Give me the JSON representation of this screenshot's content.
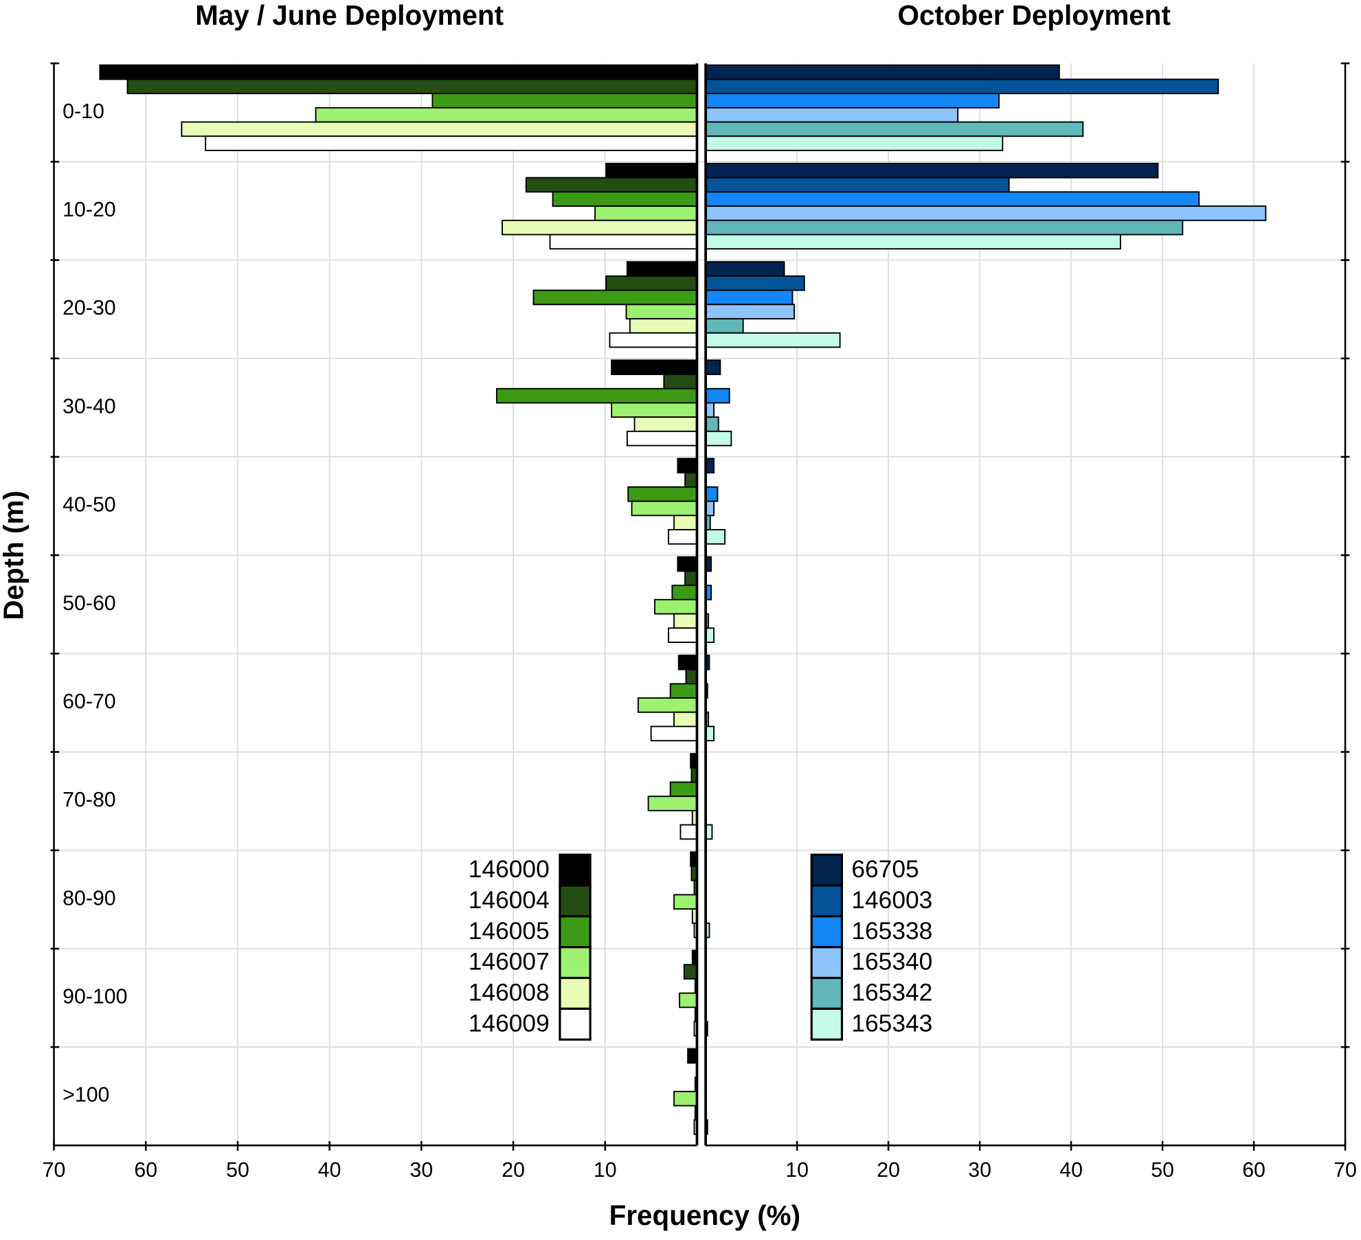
{
  "xlabel": "Frequency (%)",
  "ylabel": "Depth (m)",
  "chart_data": [
    {
      "type": "bar",
      "orientation": "horizontal",
      "direction": "reversed",
      "title": "May / June Deployment",
      "categories": [
        "0-10",
        "10-20",
        "20-30",
        "30-40",
        "40-50",
        "50-60",
        "60-70",
        "70-80",
        "80-90",
        "90-100",
        ">100"
      ],
      "series": [
        {
          "name": "146000",
          "color": "#000000",
          "values": [
            65.0,
            9.9,
            7.6,
            9.3,
            2.1,
            2.1,
            2.0,
            0.7,
            0.7,
            0.5,
            1.0
          ]
        },
        {
          "name": "146004",
          "color": "#234d13",
          "values": [
            62.0,
            18.6,
            9.9,
            3.6,
            1.3,
            1.3,
            1.2,
            0.6,
            0.6,
            1.4,
            0
          ]
        },
        {
          "name": "146005",
          "color": "#3d9a14",
          "values": [
            28.8,
            15.7,
            17.8,
            21.8,
            7.5,
            2.7,
            2.9,
            2.9,
            0.3,
            0.2,
            0.2
          ]
        },
        {
          "name": "146007",
          "color": "#9ef070",
          "values": [
            41.5,
            11.1,
            7.7,
            9.3,
            7.1,
            4.6,
            6.4,
            5.3,
            2.5,
            1.9,
            2.5
          ]
        },
        {
          "name": "146008",
          "color": "#e8fcb6",
          "values": [
            56.1,
            21.2,
            7.3,
            6.8,
            2.5,
            2.5,
            2.5,
            0.5,
            0.5,
            0.2,
            0.2
          ]
        },
        {
          "name": "146009",
          "color": "#ffffff",
          "values": [
            53.5,
            16.0,
            9.5,
            7.6,
            3.1,
            3.1,
            5.0,
            1.8,
            0.3,
            0.3,
            0.3
          ]
        }
      ],
      "xlim": [
        0,
        70
      ],
      "xticks": [
        10,
        20,
        30,
        40,
        50,
        60,
        70
      ],
      "grid": true,
      "legend": "lower right"
    },
    {
      "type": "bar",
      "orientation": "horizontal",
      "direction": "normal",
      "title": "October Deployment",
      "series": [
        {
          "name": "66705",
          "color": "#032451",
          "values": [
            38.7,
            49.5,
            8.6,
            1.6,
            0.9,
            0.6,
            0.4,
            0,
            0,
            0,
            0
          ]
        },
        {
          "name": "146003",
          "color": "#04549a",
          "values": [
            56.1,
            33.2,
            10.8,
            0,
            0,
            0,
            0,
            0,
            0,
            0,
            0
          ]
        },
        {
          "name": "165338",
          "color": "#1486f5",
          "values": [
            32.1,
            54.0,
            9.5,
            2.6,
            1.3,
            0.6,
            0.2,
            0,
            0,
            0,
            0
          ]
        },
        {
          "name": "165340",
          "color": "#8ec3fb",
          "values": [
            27.6,
            61.3,
            9.7,
            0.9,
            0.9,
            0,
            0,
            0,
            0,
            0,
            0
          ]
        },
        {
          "name": "165342",
          "color": "#62b8b8",
          "values": [
            41.3,
            52.2,
            4.1,
            1.4,
            0.5,
            0.3,
            0.3,
            0,
            0,
            0,
            0
          ]
        },
        {
          "name": "165343",
          "color": "#c4fbe8",
          "values": [
            32.5,
            45.4,
            14.7,
            2.8,
            2.1,
            0.9,
            0.9,
            0.7,
            0.4,
            0.2,
            0.2
          ]
        }
      ],
      "xlim": [
        0,
        70
      ],
      "xticks": [
        10,
        20,
        30,
        40,
        50,
        60,
        70
      ],
      "grid": true,
      "legend": "lower left"
    }
  ]
}
